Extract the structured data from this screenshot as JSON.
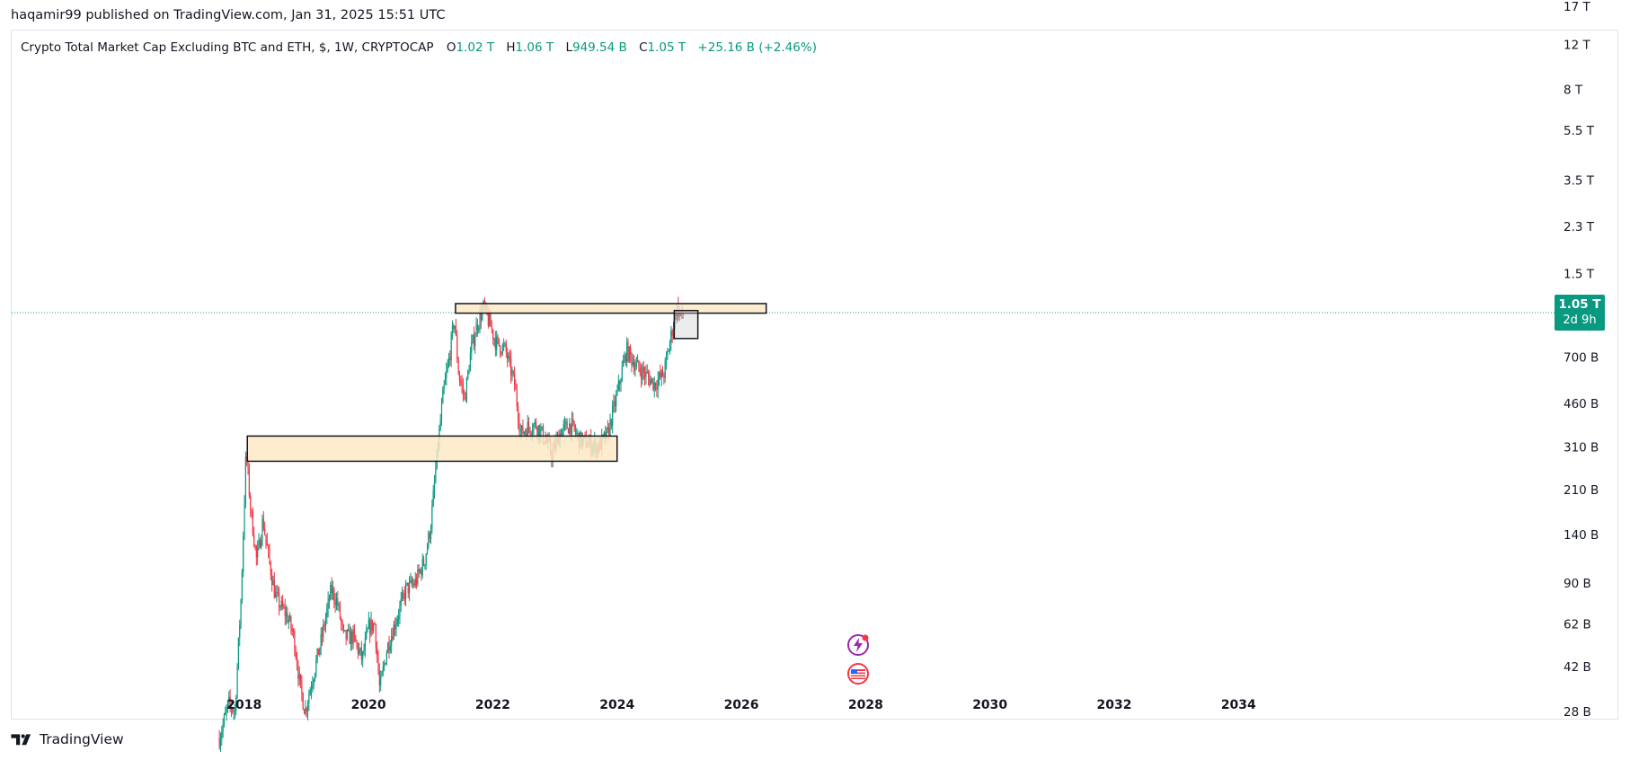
{
  "attribution": "haqamir99 published on TradingView.com, Jan 31, 2025 15:51 UTC",
  "legend": {
    "symbol": "Crypto Total Market Cap Excluding BTC and ETH, $, 1W, CRYPTOCAP",
    "open_label": "O",
    "open": "1.02 T",
    "high_label": "H",
    "high": "1.06 T",
    "low_label": "L",
    "low": "949.54 B",
    "close_label": "C",
    "close": "1.05 T",
    "change": "+25.16 B (+2.46%)"
  },
  "price_badge": {
    "price": "1.05 T",
    "countdown": "2d 9h"
  },
  "footer": {
    "brand": "TradingView"
  },
  "colors": {
    "up": "#089981",
    "down": "#f23645",
    "zone_fill": "#fde9c4",
    "zone_stroke": "#131722"
  },
  "icons": [
    "tradingview-logo-icon",
    "lightning-event-icon",
    "us-flag-icon"
  ],
  "chart_data": {
    "type": "candlestick",
    "title": "Crypto Total Market Cap Excluding BTC and ETH, $, 1W, CRYPTOCAP",
    "y_scale": "log",
    "y_ticks": [
      "17 T",
      "12 T",
      "8 T",
      "5.5 T",
      "3.5 T",
      "2.3 T",
      "1.5 T",
      "700 B",
      "460 B",
      "310 B",
      "210 B",
      "140 B",
      "90 B",
      "62 B",
      "42 B",
      "28 B"
    ],
    "y_tick_values": [
      17000,
      12000,
      8000,
      5500,
      3500,
      2300,
      1500,
      700,
      460,
      310,
      210,
      140,
      90,
      62,
      42,
      28
    ],
    "x_ticks": [
      "2018",
      "2020",
      "2022",
      "2024",
      "2026",
      "2028",
      "2030",
      "2032",
      "2034"
    ],
    "x_tick_values": [
      2018,
      2020,
      2022,
      2024,
      2026,
      2028,
      2030,
      2032,
      2034
    ],
    "ylim_billions": [
      18,
      18000
    ],
    "xlim_years": [
      2014.07,
      2040.3
    ],
    "grid": false,
    "last_price_billions": 1050,
    "series_billions": [
      [
        2017.6,
        22
      ],
      [
        2017.75,
        30
      ],
      [
        2017.85,
        28
      ],
      [
        2017.95,
        80
      ],
      [
        2018.03,
        300
      ],
      [
        2018.1,
        180
      ],
      [
        2018.2,
        110
      ],
      [
        2018.3,
        160
      ],
      [
        2018.4,
        110
      ],
      [
        2018.5,
        80
      ],
      [
        2018.6,
        72
      ],
      [
        2018.7,
        66
      ],
      [
        2018.8,
        55
      ],
      [
        2018.9,
        35
      ],
      [
        2018.98,
        28
      ],
      [
        2019.1,
        38
      ],
      [
        2019.25,
        55
      ],
      [
        2019.4,
        85
      ],
      [
        2019.5,
        75
      ],
      [
        2019.6,
        55
      ],
      [
        2019.75,
        55
      ],
      [
        2019.9,
        45
      ],
      [
        2020.0,
        60
      ],
      [
        2020.1,
        62
      ],
      [
        2020.18,
        34
      ],
      [
        2020.3,
        50
      ],
      [
        2020.45,
        65
      ],
      [
        2020.6,
        85
      ],
      [
        2020.75,
        90
      ],
      [
        2020.9,
        110
      ],
      [
        2021.0,
        150
      ],
      [
        2021.08,
        250
      ],
      [
        2021.2,
        500
      ],
      [
        2021.3,
        700
      ],
      [
        2021.38,
        1000
      ],
      [
        2021.45,
        600
      ],
      [
        2021.55,
        480
      ],
      [
        2021.65,
        750
      ],
      [
        2021.75,
        950
      ],
      [
        2021.85,
        1100
      ],
      [
        2021.95,
        950
      ],
      [
        2022.05,
        800
      ],
      [
        2022.2,
        750
      ],
      [
        2022.35,
        550
      ],
      [
        2022.45,
        350
      ],
      [
        2022.55,
        370
      ],
      [
        2022.7,
        380
      ],
      [
        2022.85,
        330
      ],
      [
        2022.95,
        290
      ],
      [
        2023.1,
        360
      ],
      [
        2023.25,
        380
      ],
      [
        2023.4,
        330
      ],
      [
        2023.55,
        320
      ],
      [
        2023.7,
        310
      ],
      [
        2023.85,
        350
      ],
      [
        2024.0,
        500
      ],
      [
        2024.15,
        750
      ],
      [
        2024.3,
        650
      ],
      [
        2024.45,
        600
      ],
      [
        2024.6,
        550
      ],
      [
        2024.75,
        600
      ],
      [
        2024.85,
        800
      ],
      [
        2024.95,
        1100
      ],
      [
        2025.05,
        1020
      ],
      [
        2025.08,
        1050
      ]
    ],
    "zones": [
      {
        "x0": 2021.4,
        "x1": 2026.4,
        "y0": 1045,
        "y1": 1140
      },
      {
        "x0": 2018.05,
        "x1": 2024.0,
        "y0": 272,
        "y1": 342
      },
      {
        "x0": 2024.92,
        "x1": 2025.3,
        "y0": 830,
        "y1": 1070
      }
    ]
  }
}
